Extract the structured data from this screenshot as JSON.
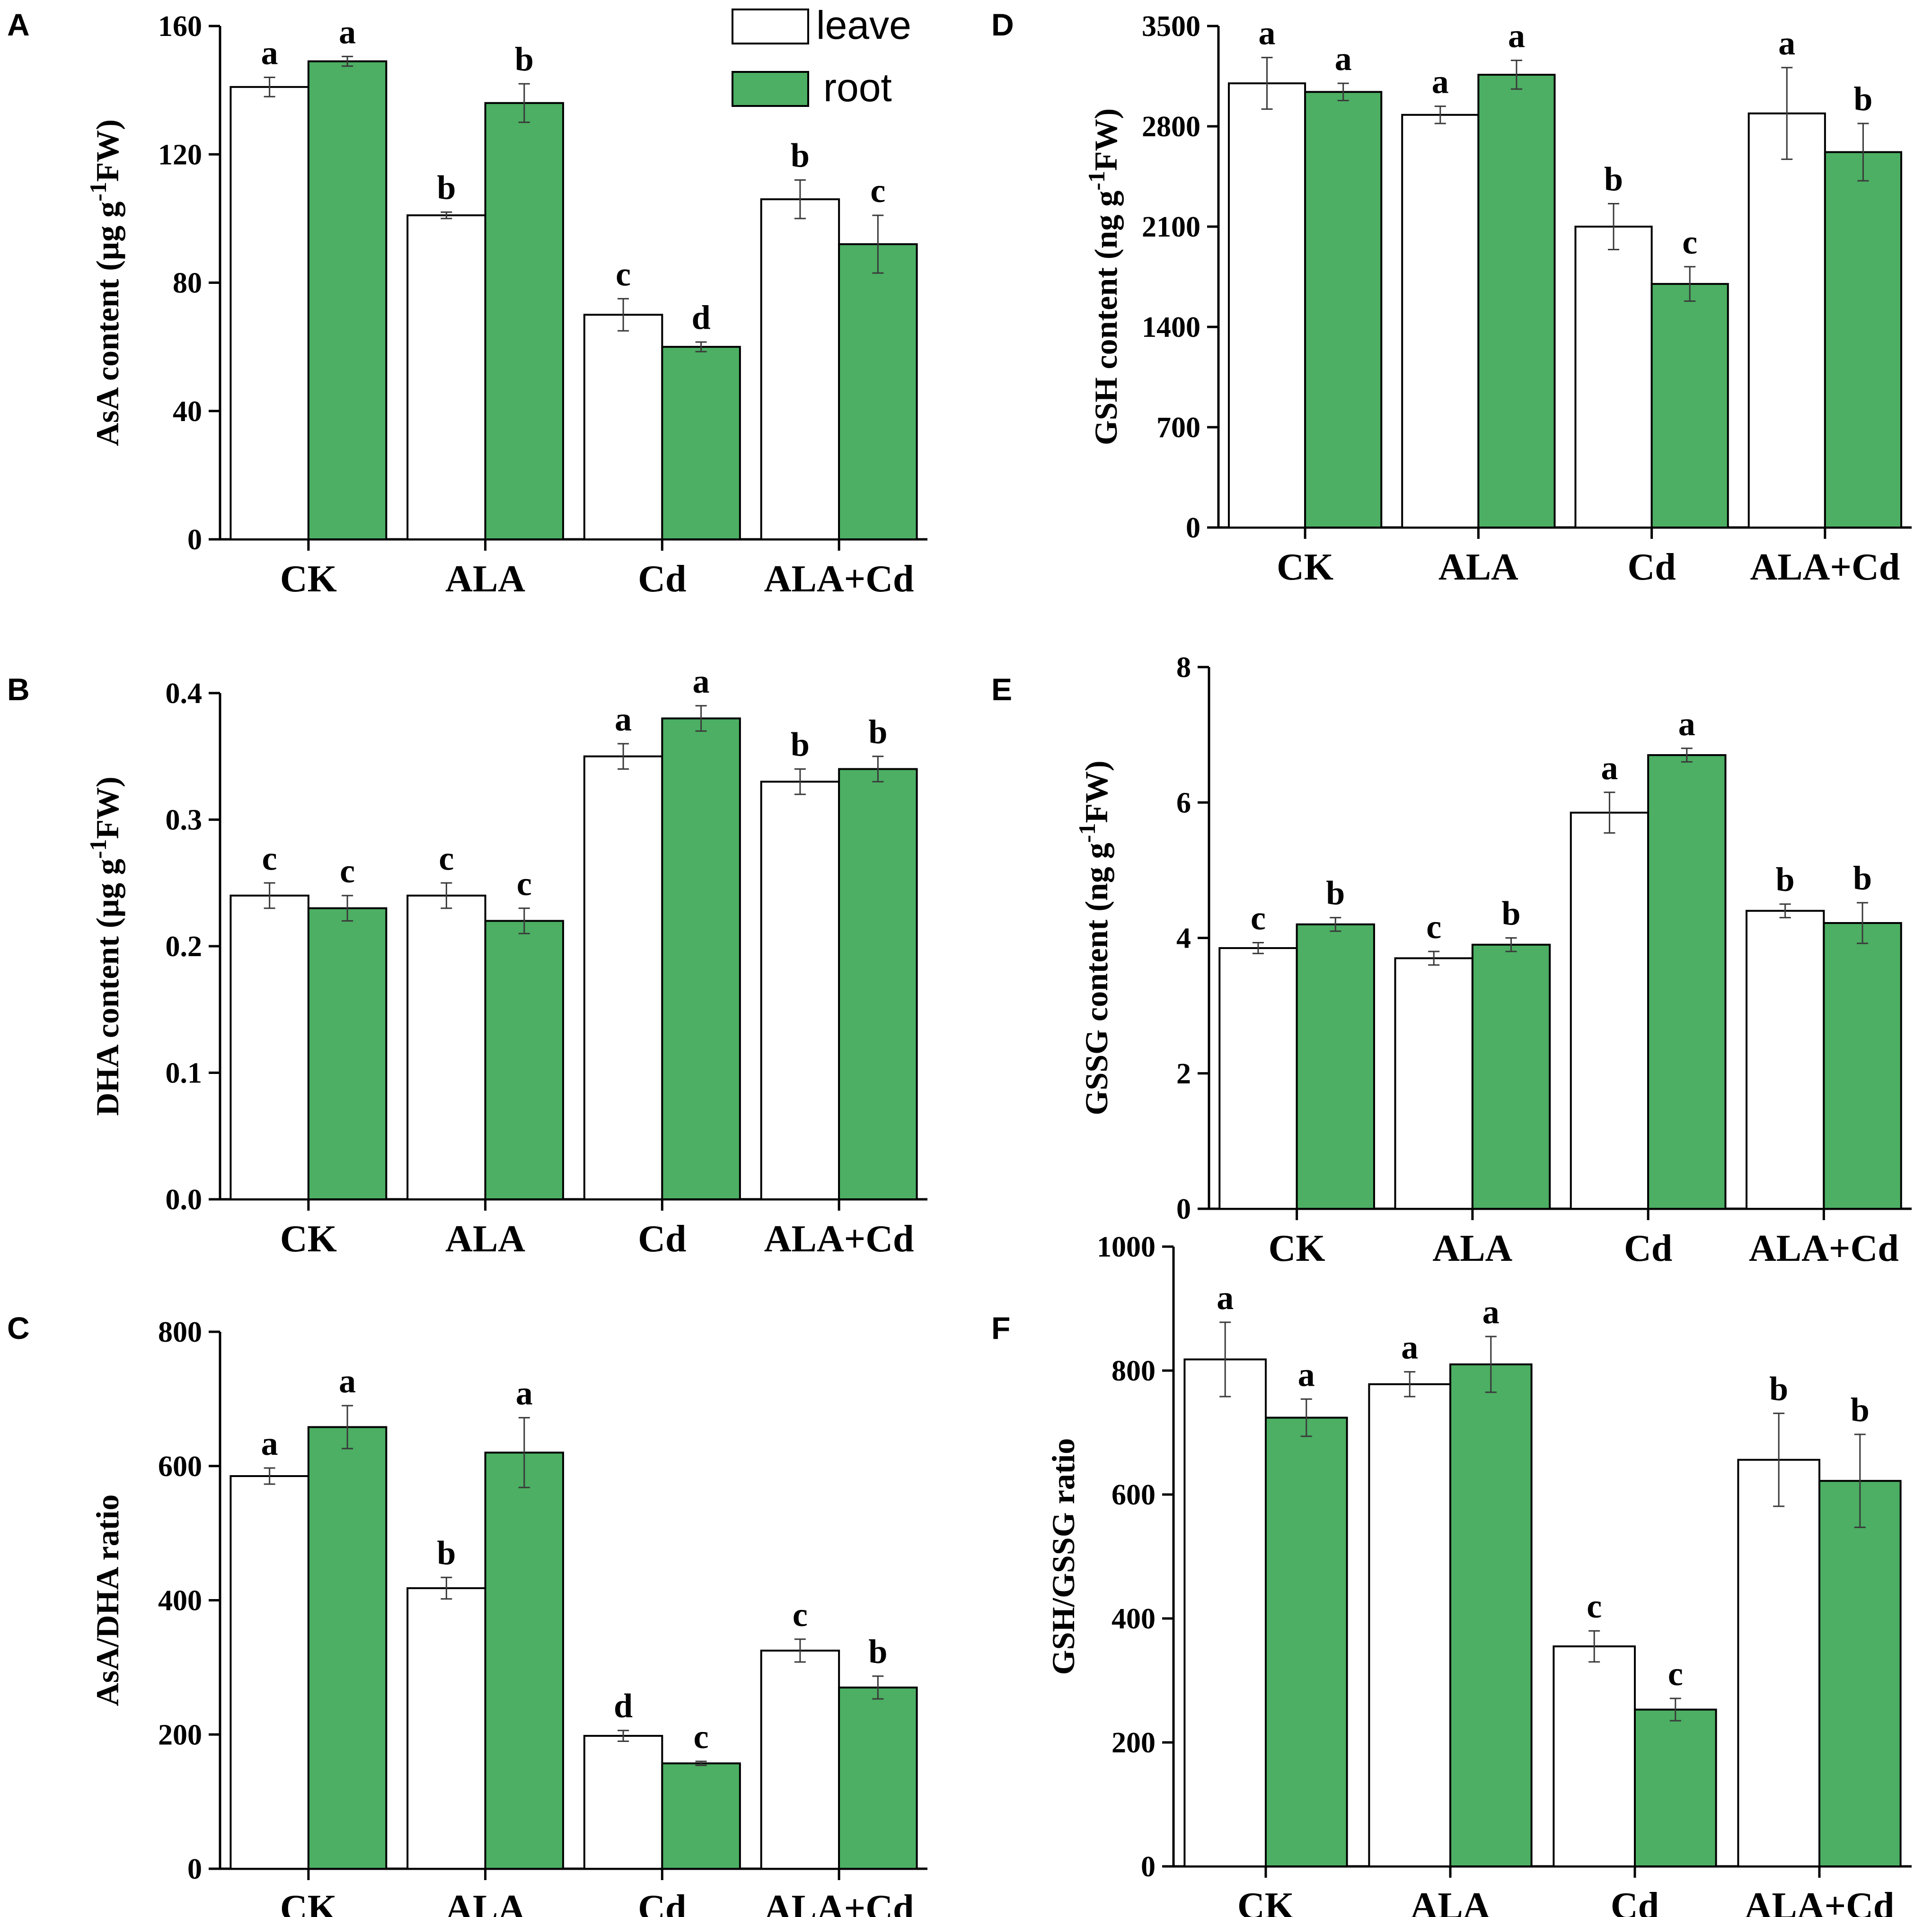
{
  "colors": {
    "leave": "#ffffff",
    "root": "#4caf63",
    "axis": "#000000",
    "error": "#3a3a3a"
  },
  "legend": {
    "leave": "leave",
    "root": "root"
  },
  "chart_data": [
    {
      "id": "A",
      "letter": "A",
      "type": "bar",
      "title": "",
      "ylabel": {
        "main": "AsA content (µg g",
        "sup": "-1",
        "tail": "FW)"
      },
      "categories": [
        "CK",
        "ALA",
        "Cd",
        "ALA+Cd"
      ],
      "ylim": [
        0,
        160
      ],
      "yticks": [
        "0",
        "40",
        "80",
        "120",
        "160"
      ],
      "series": [
        {
          "name": "leave",
          "values": [
            141,
            101,
            70,
            106
          ],
          "errors": [
            3,
            1,
            5,
            6
          ],
          "sig": [
            "a",
            "b",
            "c",
            "b"
          ]
        },
        {
          "name": "root",
          "values": [
            149,
            136,
            60,
            92
          ],
          "errors": [
            1.5,
            6,
            1.5,
            9
          ],
          "sig": [
            "a",
            "b",
            "d",
            "c"
          ]
        }
      ]
    },
    {
      "id": "B",
      "letter": "B",
      "type": "bar",
      "title": "",
      "ylabel": {
        "main": "DHA content (µg g",
        "sup": "-1",
        "tail": "FW)"
      },
      "categories": [
        "CK",
        "ALA",
        "Cd",
        "ALA+Cd"
      ],
      "ylim": [
        0,
        0.4
      ],
      "yticks": [
        "0.0",
        "0.1",
        "0.2",
        "0.3",
        "0.4"
      ],
      "series": [
        {
          "name": "leave",
          "values": [
            0.24,
            0.24,
            0.35,
            0.33
          ],
          "errors": [
            0.01,
            0.01,
            0.01,
            0.01
          ],
          "sig": [
            "c",
            "c",
            "a",
            "b"
          ]
        },
        {
          "name": "root",
          "values": [
            0.23,
            0.22,
            0.38,
            0.34
          ],
          "errors": [
            0.01,
            0.01,
            0.01,
            0.01
          ],
          "sig": [
            "c",
            "c",
            "a",
            "b"
          ]
        }
      ]
    },
    {
      "id": "C",
      "letter": "C",
      "type": "bar",
      "title": "",
      "ylabel": {
        "main": "AsA/DHA ratio",
        "sup": "",
        "tail": ""
      },
      "categories": [
        "CK",
        "ALA",
        "Cd",
        "ALA+Cd"
      ],
      "ylim": [
        0,
        800
      ],
      "yticks": [
        "0",
        "200",
        "400",
        "600",
        "800"
      ],
      "series": [
        {
          "name": "leave",
          "values": [
            585,
            418,
            198,
            325
          ],
          "errors": [
            12,
            16,
            8,
            17
          ],
          "sig": [
            "a",
            "b",
            "d",
            "c"
          ]
        },
        {
          "name": "root",
          "values": [
            658,
            620,
            157,
            270
          ],
          "errors": [
            32,
            52,
            3,
            17
          ],
          "sig": [
            "a",
            "a",
            "c",
            "b"
          ]
        }
      ]
    },
    {
      "id": "D",
      "letter": "D",
      "type": "bar",
      "title": "",
      "ylabel": {
        "main": "GSH content (ng g",
        "sup": "-1",
        "tail": "FW)"
      },
      "categories": [
        "CK",
        "ALA",
        "Cd",
        "ALA+Cd"
      ],
      "ylim": [
        0,
        3500
      ],
      "yticks": [
        "0",
        "700",
        "1400",
        "2100",
        "2800",
        "3500"
      ],
      "series": [
        {
          "name": "leave",
          "values": [
            3100,
            2880,
            2100,
            2890
          ],
          "errors": [
            180,
            60,
            160,
            320
          ],
          "sig": [
            "a",
            "a",
            "b",
            "a"
          ]
        },
        {
          "name": "root",
          "values": [
            3040,
            3160,
            1700,
            2620
          ],
          "errors": [
            60,
            100,
            120,
            200
          ],
          "sig": [
            "a",
            "a",
            "c",
            "b"
          ]
        }
      ]
    },
    {
      "id": "E",
      "letter": "E",
      "type": "bar",
      "title": "",
      "ylabel": {
        "main": "GSSG content (ng g",
        "sup": "-1",
        "tail": "FW)"
      },
      "categories": [
        "CK",
        "ALA",
        "Cd",
        "ALA+Cd"
      ],
      "ylim": [
        0,
        8
      ],
      "yticks": [
        "0",
        "2",
        "4",
        "6",
        "8"
      ],
      "series": [
        {
          "name": "leave",
          "values": [
            3.85,
            3.7,
            5.85,
            4.4
          ],
          "errors": [
            0.08,
            0.1,
            0.3,
            0.1
          ],
          "sig": [
            "c",
            "c",
            "a",
            "b"
          ]
        },
        {
          "name": "root",
          "values": [
            4.2,
            3.9,
            6.7,
            4.22
          ],
          "errors": [
            0.1,
            0.1,
            0.1,
            0.3
          ],
          "sig": [
            "b",
            "b",
            "a",
            "b"
          ]
        }
      ]
    },
    {
      "id": "F",
      "letter": "F",
      "type": "bar",
      "title": "",
      "ylabel": {
        "main": "GSH/GSSG ratio",
        "sup": "",
        "tail": ""
      },
      "categories": [
        "CK",
        "ALA",
        "Cd",
        "ALA+Cd"
      ],
      "ylim": [
        0,
        1000
      ],
      "yticks": [
        "0",
        "200",
        "400",
        "600",
        "800",
        "1000"
      ],
      "series": [
        {
          "name": "leave",
          "values": [
            818,
            778,
            355,
            656
          ],
          "errors": [
            60,
            20,
            25,
            75
          ],
          "sig": [
            "a",
            "a",
            "c",
            "b"
          ]
        },
        {
          "name": "root",
          "values": [
            724,
            810,
            253,
            622
          ],
          "errors": [
            30,
            45,
            18,
            75
          ],
          "sig": [
            "a",
            "a",
            "c",
            "b"
          ]
        }
      ]
    }
  ]
}
